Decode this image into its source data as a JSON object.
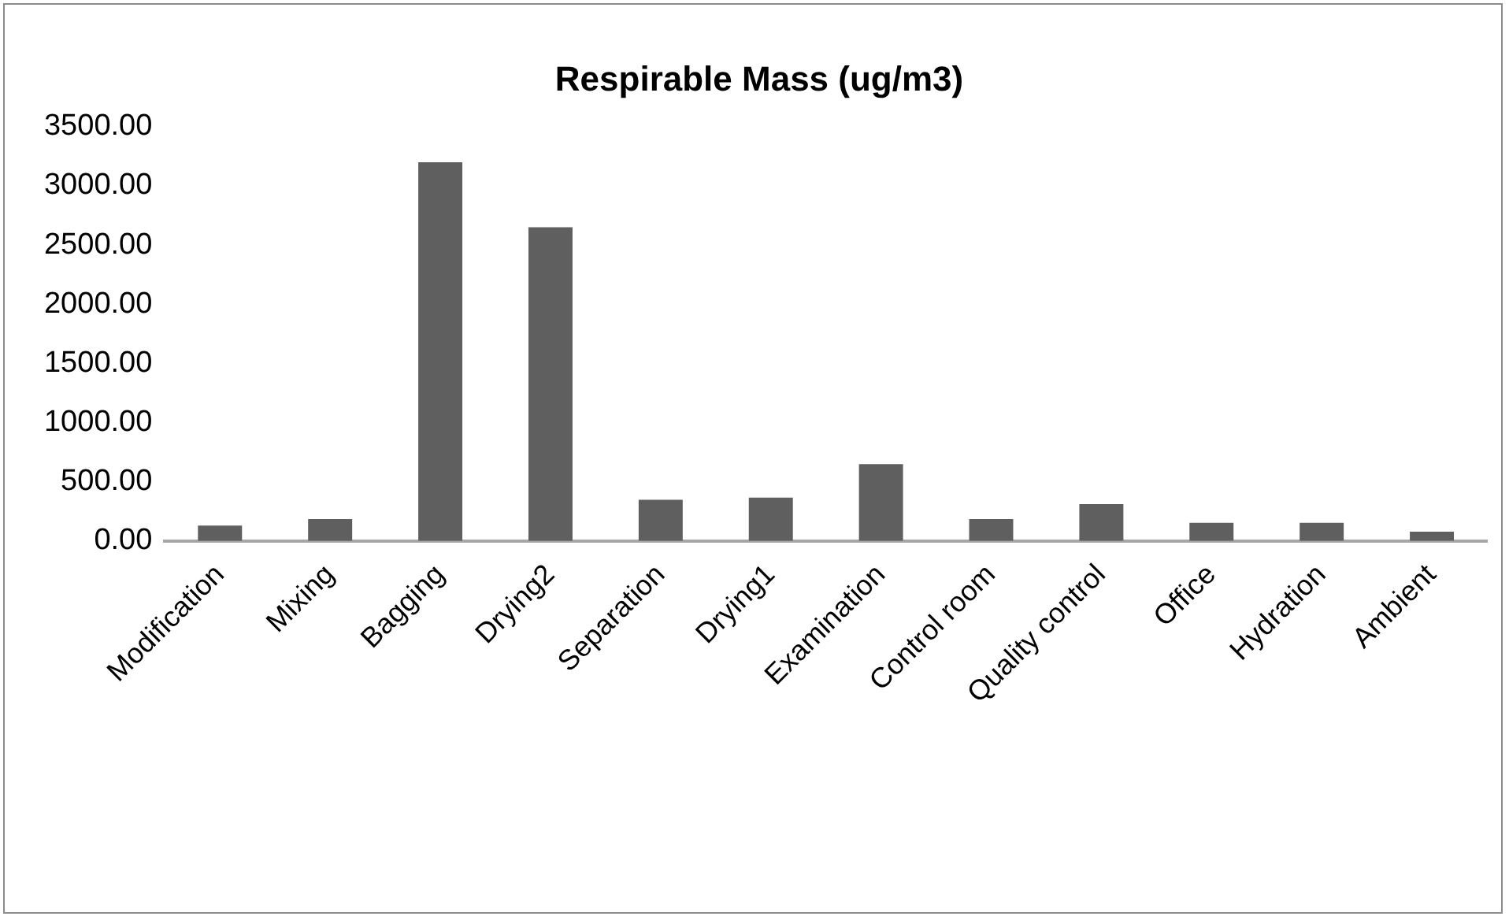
{
  "chart_data": {
    "type": "bar",
    "title": "Respirable Mass (ug/m3)",
    "categories": [
      "Modification",
      "Mixing",
      "Bagging",
      "Drying2",
      "Separation",
      "Drying1",
      "Examination",
      "Control room",
      "Quality control",
      "Office",
      "Hydration",
      "Ambient"
    ],
    "values": [
      130,
      185,
      3200,
      2650,
      348,
      366,
      649,
      185,
      311,
      153,
      153,
      79
    ],
    "color": "#5f5f5f",
    "ylim": [
      0,
      3500
    ],
    "yticks": [
      {
        "value": 0,
        "label": "0.00"
      },
      {
        "value": 500,
        "label": "500.00"
      },
      {
        "value": 1000,
        "label": "1000.00"
      },
      {
        "value": 1500,
        "label": "1500.00"
      },
      {
        "value": 2000,
        "label": "2000.00"
      },
      {
        "value": 2500,
        "label": "2500.00"
      },
      {
        "value": 3000,
        "label": "3000.00"
      },
      {
        "value": 3500,
        "label": "3500.00"
      }
    ],
    "grid": false,
    "legend": false
  }
}
